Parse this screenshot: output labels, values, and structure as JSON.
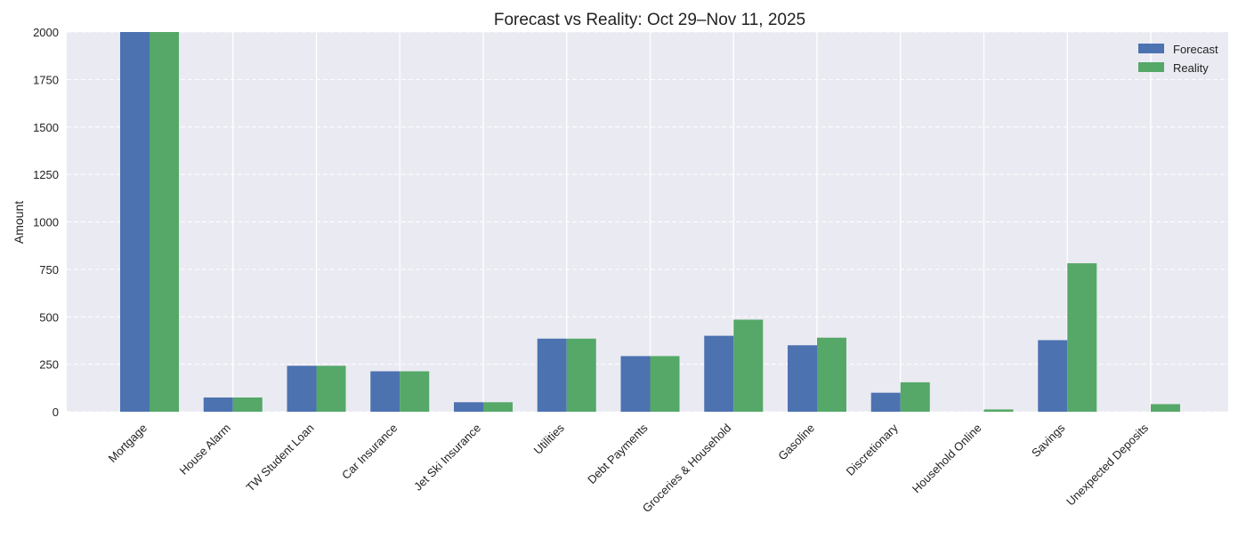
{
  "chart_data": {
    "type": "bar",
    "title": "Forecast vs Reality: Oct 29–Nov 11, 2025",
    "xlabel": "",
    "ylabel": "Amount",
    "ylim": [
      0,
      2000
    ],
    "yticks": [
      0,
      250,
      500,
      750,
      1000,
      1250,
      1500,
      1750,
      2000
    ],
    "categories": [
      "Mortgage",
      "House Alarm",
      "TW Student Loan",
      "Car Insurance",
      "Jet Ski Insurance",
      "Utilities",
      "Debt Payments",
      "Groceries & Household",
      "Gasoline",
      "Discretionary",
      "Household Online",
      "Savings",
      "Unexpected Deposits"
    ],
    "series": [
      {
        "name": "Forecast",
        "color": "#4c72b0",
        "values": [
          2000,
          75,
          242,
          213,
          50,
          385,
          293,
          400,
          350,
          100,
          0,
          377,
          0
        ]
      },
      {
        "name": "Reality",
        "color": "#55a868",
        "values": [
          2000,
          75,
          242,
          213,
          50,
          385,
          293,
          485,
          390,
          155,
          12,
          782,
          40
        ]
      }
    ],
    "grid": true,
    "legend_position": "top-right",
    "background_color": "#eaeaf2"
  }
}
